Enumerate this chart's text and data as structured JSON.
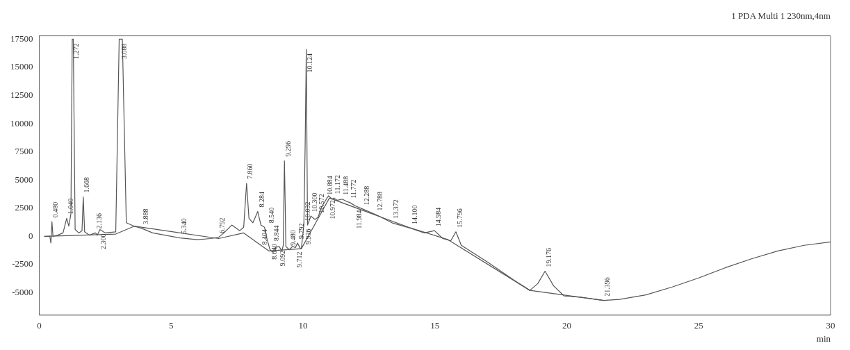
{
  "chart_data": {
    "type": "line",
    "title": "1 PDA Multi 1 230nm,4nm",
    "xlabel": "min",
    "xlim": [
      0,
      30
    ],
    "xticks": [
      0,
      5,
      10,
      15,
      20,
      25,
      30
    ],
    "ylim": [
      -7000,
      17800
    ],
    "yticks": [
      -5000,
      -2500,
      0,
      2500,
      5000,
      7500,
      10000,
      12500,
      15000,
      17500
    ],
    "grid": false,
    "legend": false,
    "marker": "none",
    "line_style": "solid",
    "series": [
      {
        "color": "#555555",
        "x": [
          0.2,
          0.4,
          0.44,
          0.48,
          0.52,
          0.7,
          0.9,
          1.04,
          1.12,
          1.2,
          1.25,
          1.272,
          1.29,
          1.36,
          1.5,
          1.62,
          1.668,
          1.72,
          1.9,
          2.136,
          2.2,
          2.3,
          2.5,
          2.9,
          3.03,
          3.088,
          3.15,
          3.3,
          3.6,
          3.888,
          4.3,
          5.34,
          6.0,
          6.5,
          6.792,
          7.0,
          7.3,
          7.6,
          7.75,
          7.86,
          7.95,
          8.1,
          8.284,
          8.404,
          8.54,
          8.64,
          8.75,
          8.844,
          8.95,
          9.092,
          9.2,
          9.25,
          9.296,
          9.35,
          9.48,
          9.6,
          9.712,
          9.792,
          9.9,
          9.936,
          10.032,
          10.08,
          10.124,
          10.17,
          10.3,
          10.45,
          10.572,
          10.7,
          10.884,
          10.972,
          11.1,
          11.172,
          11.3,
          11.488,
          11.65,
          11.772,
          11.984,
          12.288,
          12.788,
          13.372,
          14.1,
          14.6,
          14.984,
          15.3,
          15.6,
          15.796,
          16.0,
          17.0,
          18.0,
          18.6,
          18.9,
          19.176,
          19.5,
          19.9,
          20.5,
          21.396,
          22.0,
          23.0,
          24.0,
          25.0,
          26.0,
          27.0,
          28.0,
          29.0,
          30.0
        ],
        "values": [
          0,
          0,
          -600,
          1300,
          0,
          100,
          300,
          1600,
          900,
          2000,
          17500,
          17500,
          17500,
          600,
          300,
          500,
          3500,
          400,
          100,
          300,
          100,
          600,
          300,
          400,
          17500,
          17500,
          17500,
          1200,
          900,
          700,
          300,
          -150,
          -300,
          -200,
          -100,
          300,
          1000,
          500,
          800,
          4700,
          1600,
          1200,
          2200,
          1000,
          800,
          -300,
          -1200,
          -1400,
          -1000,
          -900,
          -1300,
          -800,
          6700,
          -900,
          -1200,
          -900,
          -1000,
          -600,
          -1100,
          -1100,
          1000,
          8000,
          16600,
          1000,
          1800,
          1500,
          1700,
          2600,
          3300,
          3600,
          3300,
          3400,
          3200,
          3300,
          3100,
          3000,
          2700,
          2400,
          1900,
          1200,
          700,
          300,
          500,
          -200,
          -400,
          400,
          -800,
          -2300,
          -3900,
          -4800,
          -4200,
          -3100,
          -4400,
          -5300,
          -5400,
          -5700,
          -5600,
          -5200,
          -4500,
          -3700,
          -2800,
          -2000,
          -1300,
          -800,
          -500
        ]
      },
      {
        "color": "#555555",
        "x": [
          0.2,
          2.9,
          3.6,
          6.8,
          7.75,
          8.7,
          9.936,
          10.6,
          11.0,
          14.0,
          15.5,
          18.6,
          21.4
        ],
        "values": [
          0,
          200,
          900,
          -200,
          300,
          -1300,
          -1100,
          1700,
          3400,
          800,
          -300,
          -4800,
          -5700
        ]
      }
    ],
    "annotations": [
      {
        "text": "0.480",
        "x": 0.48,
        "y": 1300
      },
      {
        "text": "1.040",
        "x": 1.04,
        "y": 1600
      },
      {
        "text": "1.272",
        "x": 1.272,
        "y": 17500
      },
      {
        "text": "1.668",
        "x": 1.668,
        "y": 3500
      },
      {
        "text": "2.136",
        "x": 2.136,
        "y": 300
      },
      {
        "text": "2.300",
        "x": 2.3,
        "y": 600
      },
      {
        "text": "3.088",
        "x": 3.088,
        "y": 17500
      },
      {
        "text": "3.888",
        "x": 3.888,
        "y": 700
      },
      {
        "text": "5.340",
        "x": 5.34,
        "y": -150
      },
      {
        "text": "6.792",
        "x": 6.792,
        "y": -100
      },
      {
        "text": "7.860",
        "x": 7.86,
        "y": 4700
      },
      {
        "text": "8.284",
        "x": 8.284,
        "y": 2200
      },
      {
        "text": "8.404",
        "x": 8.404,
        "y": 1000
      },
      {
        "text": "8.540",
        "x": 8.54,
        "y": 800
      },
      {
        "text": "8.640",
        "x": 8.64,
        "y": -300
      },
      {
        "text": "8.844",
        "x": 8.844,
        "y": -1400
      },
      {
        "text": "9.092",
        "x": 9.092,
        "y": -900
      },
      {
        "text": "9.296",
        "x": 9.296,
        "y": 6700
      },
      {
        "text": "9.480",
        "x": 9.48,
        "y": -1200
      },
      {
        "text": "9.712",
        "x": 9.712,
        "y": -1000
      },
      {
        "text": "9.792",
        "x": 9.792,
        "y": -600
      },
      {
        "text": "9.936",
        "x": 9.936,
        "y": -1100
      },
      {
        "text": "10.032",
        "x": 10.032,
        "y": 1000
      },
      {
        "text": "10.124",
        "x": 10.124,
        "y": 16600
      },
      {
        "text": "10.300",
        "x": 10.3,
        "y": 1800
      },
      {
        "text": "10.572",
        "x": 10.572,
        "y": 1700
      },
      {
        "text": "10.884",
        "x": 10.884,
        "y": 3300
      },
      {
        "text": "10.972",
        "x": 10.972,
        "y": 3600
      },
      {
        "text": "11.172",
        "x": 11.172,
        "y": 3400
      },
      {
        "text": "11.488",
        "x": 11.488,
        "y": 3300
      },
      {
        "text": "11.772",
        "x": 11.772,
        "y": 3000
      },
      {
        "text": "11.984",
        "x": 11.984,
        "y": 2700
      },
      {
        "text": "12.288",
        "x": 12.288,
        "y": 2400
      },
      {
        "text": "12.788",
        "x": 12.788,
        "y": 1900
      },
      {
        "text": "13.372",
        "x": 13.372,
        "y": 1200
      },
      {
        "text": "14.100",
        "x": 14.1,
        "y": 700
      },
      {
        "text": "14.984",
        "x": 14.984,
        "y": 500
      },
      {
        "text": "15.796",
        "x": 15.796,
        "y": 400
      },
      {
        "text": "19.176",
        "x": 19.176,
        "y": -3100
      },
      {
        "text": "21.396",
        "x": 21.396,
        "y": -5700
      }
    ]
  }
}
